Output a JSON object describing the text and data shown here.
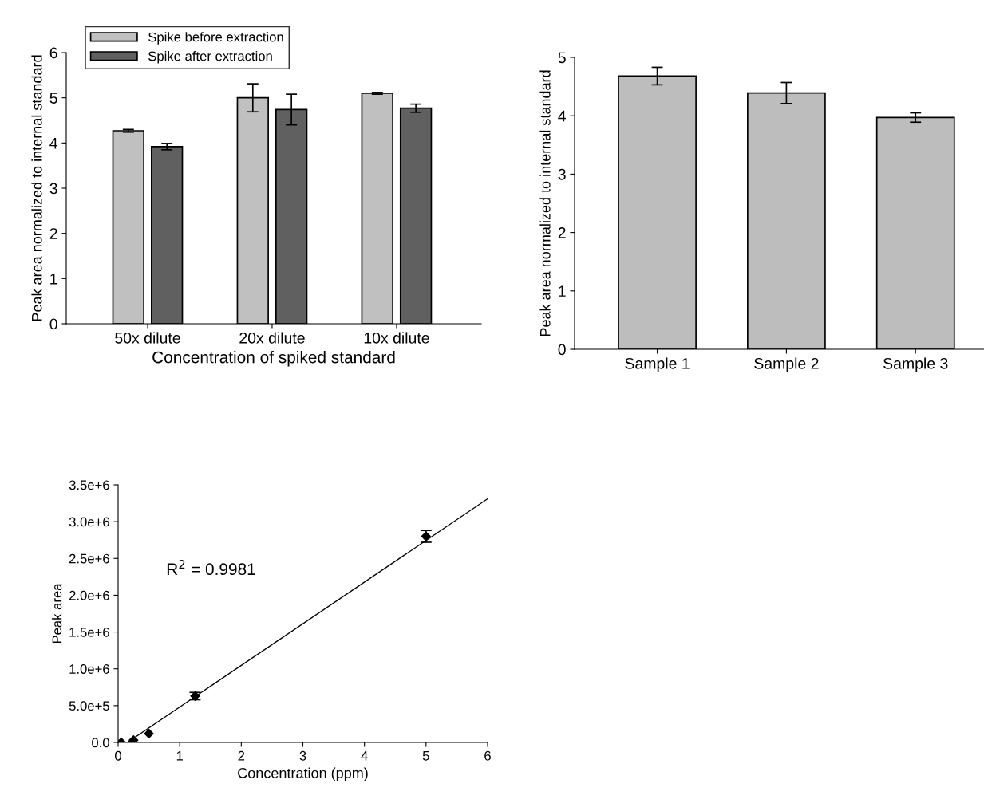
{
  "chart_data": [
    {
      "type": "bar",
      "categories": [
        "50x dilute",
        "20x dilute",
        "10x dilute"
      ],
      "xlabel": "Concentration of spiked standard",
      "ylabel": "Peak area normalized to internal standard",
      "ylim": [
        0,
        6
      ],
      "yticks": [
        0,
        1,
        2,
        3,
        4,
        5,
        6
      ],
      "grid": false,
      "legend": "top left",
      "series": [
        {
          "name": "Spike before extraction",
          "color": "#c0c0c0",
          "values": [
            4.27,
            5.0,
            5.1
          ],
          "errors": [
            0.03,
            0.31,
            0.02
          ]
        },
        {
          "name": "Spike after extraction",
          "color": "#606060",
          "values": [
            3.92,
            4.74,
            4.77
          ],
          "errors": [
            0.07,
            0.34,
            0.09
          ]
        }
      ]
    },
    {
      "type": "bar",
      "categories": [
        "Sample 1",
        "Sample 2",
        "Sample 3"
      ],
      "ylabel": "Peak area normalized to internal standard",
      "ylim": [
        0,
        5
      ],
      "yticks": [
        0,
        1,
        2,
        3,
        4,
        5
      ],
      "grid": false,
      "legend": false,
      "series": [
        {
          "color": "#bdbdbd",
          "values": [
            4.68,
            4.39,
            3.97
          ],
          "errors": [
            0.15,
            0.18,
            0.08
          ]
        }
      ]
    },
    {
      "type": "scatter",
      "xlabel": "Concentration (ppm)",
      "ylabel": "Peak area",
      "xlim": [
        0,
        6
      ],
      "xticks": [
        0,
        1,
        2,
        3,
        4,
        5,
        6
      ],
      "ylim": [
        0,
        3500000
      ],
      "yticks": [
        {
          "value": 0,
          "label": "0.0"
        },
        {
          "value": 500000,
          "label": "5.0e+5"
        },
        {
          "value": 1000000,
          "label": "1.0e+6"
        },
        {
          "value": 1500000,
          "label": "1.5e+6"
        },
        {
          "value": 2000000,
          "label": "2.0e+6"
        },
        {
          "value": 2500000,
          "label": "2.5e+6"
        },
        {
          "value": 3000000,
          "label": "3.0e+6"
        },
        {
          "value": 3500000,
          "label": "3.5e+6"
        }
      ],
      "grid": false,
      "legend": false,
      "annotations": [
        "R$^{2}$ = 0.9981"
      ],
      "series": [
        {
          "type": "scatter",
          "marker": "diamond",
          "color": "#000000",
          "x": [
            0.05,
            0.25,
            0.5,
            1.25,
            5
          ],
          "values": [
            0,
            30000,
            120000,
            630000,
            2800000
          ],
          "errors": [
            null,
            null,
            null,
            50000,
            80000
          ]
        },
        {
          "type": "line",
          "marker": "none",
          "color": "#000000",
          "line_style": "solid",
          "x": [
            0.15,
            6
          ],
          "values": [
            0,
            3310000
          ]
        }
      ]
    }
  ]
}
